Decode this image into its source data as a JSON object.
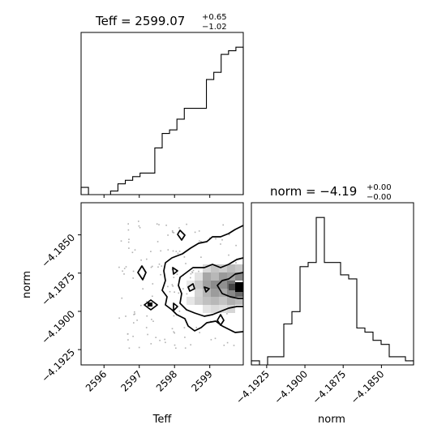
{
  "chart_data": [
    {
      "type": "histogram",
      "panel": "top-left",
      "title_main": "Teff = 2599.07",
      "title_sup": "+0.65",
      "title_sub": "−1.02",
      "xlim": [
        2595.35,
        2599.95
      ],
      "hist_heights": [
        2,
        0,
        0,
        0,
        1,
        3,
        4,
        5,
        6,
        6,
        13,
        17,
        18,
        21,
        24,
        24,
        24,
        32,
        34,
        39,
        40,
        41
      ]
    },
    {
      "type": "contour",
      "panel": "bottom-left",
      "xlabel": "Teff",
      "ylabel": "norm",
      "xlim": [
        2595.35,
        2599.95
      ],
      "ylim": [
        -4.1935,
        -4.1829
      ],
      "x_ticks": [
        2596,
        2597,
        2598,
        2599
      ],
      "x_tick_labels": [
        "2596",
        "2597",
        "2598",
        "2599"
      ],
      "y_ticks": [
        -4.185,
        -4.1875,
        -4.19,
        -4.1925
      ],
      "y_tick_labels": [
        "−4.1850",
        "−4.1875",
        "−4.1900",
        "−4.1925"
      ]
    },
    {
      "type": "histogram",
      "panel": "bottom-right",
      "title_main": "norm = −4.19",
      "title_sup": "+0.00",
      "title_sub": "−0.00",
      "xlabel": "norm",
      "xlim": [
        -4.1935,
        -4.1829
      ],
      "x_ticks": [
        -4.1925,
        -4.19,
        -4.1875,
        -4.185
      ],
      "x_tick_labels": [
        "−4.1925",
        "−4.1900",
        "−4.1875",
        "−4.1850"
      ],
      "hist_heights": [
        1,
        0,
        2,
        2,
        10,
        13,
        24,
        25,
        36,
        25,
        25,
        22,
        21,
        9,
        8,
        6,
        5,
        2,
        2,
        1
      ]
    }
  ]
}
